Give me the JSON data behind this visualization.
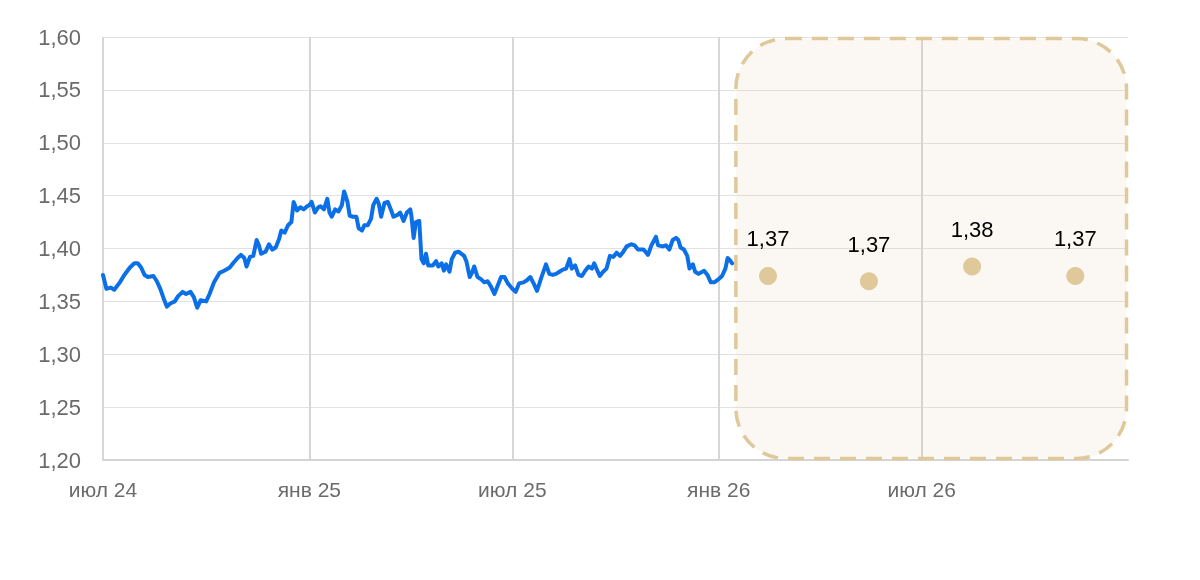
{
  "chart_data": {
    "type": "line",
    "xlim": [
      "2024-07-01",
      "2027-01-01"
    ],
    "xticks": [
      {
        "value": "2024-07-01",
        "label": "июл 24"
      },
      {
        "value": "2025-01-01",
        "label": "янв 25"
      },
      {
        "value": "2025-07-01",
        "label": "июл 25"
      },
      {
        "value": "2026-01-01",
        "label": "янв 26"
      },
      {
        "value": "2026-07-01",
        "label": "июл 26"
      }
    ],
    "ylim": [
      1.2,
      1.6
    ],
    "yticks": [
      {
        "value": 1.2,
        "label": "1,20"
      },
      {
        "value": 1.25,
        "label": "1,25"
      },
      {
        "value": 1.3,
        "label": "1,30"
      },
      {
        "value": 1.35,
        "label": "1,35"
      },
      {
        "value": 1.4,
        "label": "1,40"
      },
      {
        "value": 1.45,
        "label": "1,45"
      },
      {
        "value": 1.5,
        "label": "1,50"
      },
      {
        "value": 1.55,
        "label": "1,55"
      },
      {
        "value": 1.6,
        "label": "1,60"
      }
    ],
    "grid": true,
    "bands": [
      {
        "axis": "x",
        "from": "2026-01-15",
        "to": "2027-01-01",
        "color": "#dfc899"
      }
    ],
    "series": [
      {
        "color": "#0b6fe8",
        "marker": "none",
        "line_style": "solid",
        "x": [
          "2024-07-01",
          "2024-07-04",
          "2024-07-08",
          "2024-07-11",
          "2024-07-16",
          "2024-07-20",
          "2024-07-25",
          "2024-07-29",
          "2024-08-01",
          "2024-08-04",
          "2024-08-07",
          "2024-08-10",
          "2024-08-15",
          "2024-08-18",
          "2024-08-21",
          "2024-08-24",
          "2024-08-27",
          "2024-08-30",
          "2024-09-03",
          "2024-09-06",
          "2024-09-10",
          "2024-09-13",
          "2024-09-17",
          "2024-09-20",
          "2024-09-23",
          "2024-09-26",
          "2024-10-01",
          "2024-10-04",
          "2024-10-08",
          "2024-10-13",
          "2024-10-17",
          "2024-10-22",
          "2024-10-25",
          "2024-10-29",
          "2024-11-01",
          "2024-11-04",
          "2024-11-06",
          "2024-11-09",
          "2024-11-12",
          "2024-11-15",
          "2024-11-17",
          "2024-11-19",
          "2024-11-23",
          "2024-11-26",
          "2024-11-29",
          "2024-12-02",
          "2024-12-05",
          "2024-12-07",
          "2024-12-10",
          "2024-12-13",
          "2024-12-16",
          "2024-12-18",
          "2024-12-21",
          "2024-12-24",
          "2024-12-27",
          "2024-12-30",
          "2025-01-01",
          "2025-01-03",
          "2025-01-06",
          "2025-01-09",
          "2025-01-11",
          "2025-01-14",
          "2025-01-17",
          "2025-01-19",
          "2025-01-21",
          "2025-01-24",
          "2025-01-27",
          "2025-01-30",
          "2025-02-01",
          "2025-02-04",
          "2025-02-06",
          "2025-02-09",
          "2025-02-12",
          "2025-02-14",
          "2025-02-17",
          "2025-02-19",
          "2025-02-22",
          "2025-02-25",
          "2025-02-27",
          "2025-03-02",
          "2025-03-04",
          "2025-03-06",
          "2025-03-09",
          "2025-03-12",
          "2025-03-15",
          "2025-03-17",
          "2025-03-21",
          "2025-03-23",
          "2025-03-26",
          "2025-03-29",
          "2025-04-01",
          "2025-04-02",
          "2025-04-04",
          "2025-04-06",
          "2025-04-09",
          "2025-04-11",
          "2025-04-13",
          "2025-04-15",
          "2025-04-17",
          "2025-04-21",
          "2025-04-24",
          "2025-04-26",
          "2025-04-29",
          "2025-05-01",
          "2025-05-03",
          "2025-05-06",
          "2025-05-08",
          "2025-05-11",
          "2025-05-14",
          "2025-05-19",
          "2025-05-21",
          "2025-05-24",
          "2025-05-26",
          "2025-05-28",
          "2025-05-31",
          "2025-06-03",
          "2025-06-06",
          "2025-06-09",
          "2025-06-12",
          "2025-06-15",
          "2025-06-18",
          "2025-06-21",
          "2025-06-24",
          "2025-06-27",
          "2025-07-01",
          "2025-07-04",
          "2025-07-07",
          "2025-07-11",
          "2025-07-14",
          "2025-07-17",
          "2025-07-20",
          "2025-07-23",
          "2025-07-27",
          "2025-07-31",
          "2025-08-03",
          "2025-08-06",
          "2025-08-09",
          "2025-08-12",
          "2025-08-15",
          "2025-08-18",
          "2025-08-21",
          "2025-08-23",
          "2025-08-26",
          "2025-08-29",
          "2025-09-01",
          "2025-09-04",
          "2025-09-07",
          "2025-09-10",
          "2025-09-12",
          "2025-09-14",
          "2025-09-17",
          "2025-09-20",
          "2025-09-23",
          "2025-09-26",
          "2025-09-29",
          "2025-10-02",
          "2025-10-05",
          "2025-10-08",
          "2025-10-11",
          "2025-10-15",
          "2025-10-18",
          "2025-10-21",
          "2025-10-26",
          "2025-10-30",
          "2025-11-02",
          "2025-11-06",
          "2025-11-08",
          "2025-11-12",
          "2025-11-15",
          "2025-11-18",
          "2025-11-21",
          "2025-11-24",
          "2025-11-26",
          "2025-11-28",
          "2025-12-01",
          "2025-12-04",
          "2025-12-06",
          "2025-12-09",
          "2025-12-11",
          "2025-12-14",
          "2025-12-19",
          "2025-12-22",
          "2025-12-25",
          "2025-12-28",
          "2026-01-01",
          "2026-01-04",
          "2026-01-07",
          "2026-01-09",
          "2026-01-11",
          "2026-01-13"
        ],
        "values": [
          1.375,
          1.362,
          1.363,
          1.361,
          1.368,
          1.375,
          1.382,
          1.386,
          1.386,
          1.382,
          1.375,
          1.373,
          1.374,
          1.369,
          1.362,
          1.353,
          1.345,
          1.348,
          1.35,
          1.355,
          1.359,
          1.357,
          1.359,
          1.354,
          1.344,
          1.351,
          1.35,
          1.357,
          1.368,
          1.377,
          1.379,
          1.382,
          1.386,
          1.391,
          1.394,
          1.391,
          1.383,
          1.392,
          1.393,
          1.408,
          1.403,
          1.395,
          1.397,
          1.404,
          1.399,
          1.401,
          1.409,
          1.417,
          1.415,
          1.422,
          1.425,
          1.444,
          1.436,
          1.439,
          1.437,
          1.44,
          1.441,
          1.444,
          1.434,
          1.439,
          1.44,
          1.437,
          1.447,
          1.434,
          1.43,
          1.437,
          1.435,
          1.441,
          1.454,
          1.444,
          1.431,
          1.43,
          1.43,
          1.419,
          1.417,
          1.422,
          1.422,
          1.428,
          1.441,
          1.447,
          1.442,
          1.43,
          1.443,
          1.444,
          1.436,
          1.43,
          1.432,
          1.434,
          1.426,
          1.434,
          1.437,
          1.431,
          1.41,
          1.425,
          1.426,
          1.39,
          1.386,
          1.395,
          1.384,
          1.384,
          1.388,
          1.383,
          1.386,
          1.379,
          1.385,
          1.378,
          1.39,
          1.396,
          1.397,
          1.393,
          1.388,
          1.373,
          1.377,
          1.383,
          1.373,
          1.371,
          1.368,
          1.369,
          1.364,
          1.357,
          1.365,
          1.373,
          1.373,
          1.367,
          1.362,
          1.359,
          1.367,
          1.368,
          1.37,
          1.373,
          1.367,
          1.36,
          1.373,
          1.385,
          1.376,
          1.375,
          1.376,
          1.378,
          1.38,
          1.381,
          1.39,
          1.381,
          1.384,
          1.375,
          1.374,
          1.379,
          1.383,
          1.381,
          1.386,
          1.381,
          1.374,
          1.378,
          1.381,
          1.393,
          1.392,
          1.396,
          1.393,
          1.397,
          1.402,
          1.404,
          1.403,
          1.399,
          1.399,
          1.394,
          1.403,
          1.411,
          1.403,
          1.402,
          1.403,
          1.399,
          1.408,
          1.41,
          1.408,
          1.401,
          1.399,
          1.393,
          1.381,
          1.385,
          1.378,
          1.376,
          1.379,
          1.375,
          1.368,
          1.368,
          1.371,
          1.374,
          1.381,
          1.391,
          1.389,
          1.386
        ]
      },
      {
        "type": "scatter",
        "color": "#dfc899",
        "marker": "circle",
        "x": [
          "2026-02-14",
          "2026-05-15",
          "2026-08-15",
          "2026-11-15"
        ],
        "values": [
          1.374,
          1.369,
          1.383,
          1.374
        ],
        "value_labels": [
          "1,37",
          "1,37",
          "1,38",
          "1,37"
        ]
      }
    ]
  }
}
